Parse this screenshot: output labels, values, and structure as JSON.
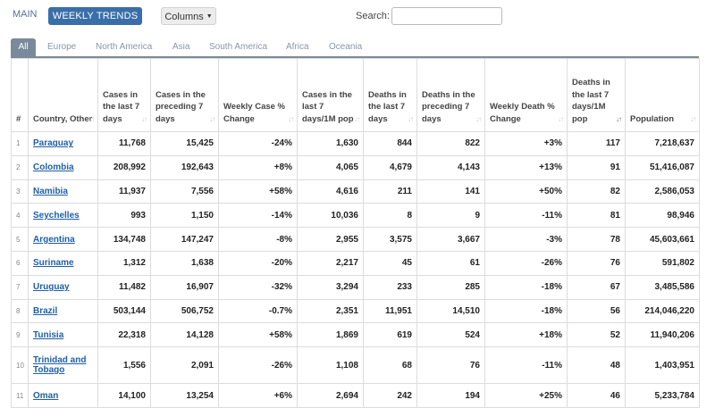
{
  "topbar": {
    "main_label": "MAIN",
    "weekly_label": "WEEKLY TRENDS",
    "columns_label": "Columns",
    "search_label": "Search:",
    "search_value": ""
  },
  "tabs": [
    "All",
    "Europe",
    "North America",
    "Asia",
    "South America",
    "Africa",
    "Oceania"
  ],
  "columns": [
    "#",
    "Country, Other",
    "Cases in the last 7 days",
    "Cases in the preceding 7 days",
    "Weekly Case % Change",
    "Cases in the last 7 days/1M pop",
    "Deaths in the last 7 days",
    "Deaths in the preceding 7 days",
    "Weekly Death % Change",
    "Deaths in the last 7 days/1M pop",
    "Population"
  ],
  "rows": [
    {
      "num": "1",
      "country": "Paraguay",
      "c7": "11,768",
      "cp": "15,425",
      "cchg": "-24%",
      "cpm": "1,630",
      "d7": "844",
      "dp": "822",
      "dchg": "+3%",
      "dpm": "117",
      "pop": "7,218,637"
    },
    {
      "num": "2",
      "country": "Colombia",
      "c7": "208,992",
      "cp": "192,643",
      "cchg": "+8%",
      "cpm": "4,065",
      "d7": "4,679",
      "dp": "4,143",
      "dchg": "+13%",
      "dpm": "91",
      "pop": "51,416,087"
    },
    {
      "num": "3",
      "country": "Namibia",
      "c7": "11,937",
      "cp": "7,556",
      "cchg": "+58%",
      "cpm": "4,616",
      "d7": "211",
      "dp": "141",
      "dchg": "+50%",
      "dpm": "82",
      "pop": "2,586,053"
    },
    {
      "num": "4",
      "country": "Seychelles",
      "c7": "993",
      "cp": "1,150",
      "cchg": "-14%",
      "cpm": "10,036",
      "d7": "8",
      "dp": "9",
      "dchg": "-11%",
      "dpm": "81",
      "pop": "98,946"
    },
    {
      "num": "5",
      "country": "Argentina",
      "c7": "134,748",
      "cp": "147,247",
      "cchg": "-8%",
      "cpm": "2,955",
      "d7": "3,575",
      "dp": "3,667",
      "dchg": "-3%",
      "dpm": "78",
      "pop": "45,603,661"
    },
    {
      "num": "6",
      "country": "Suriname",
      "c7": "1,312",
      "cp": "1,638",
      "cchg": "-20%",
      "cpm": "2,217",
      "d7": "45",
      "dp": "61",
      "dchg": "-26%",
      "dpm": "76",
      "pop": "591,802"
    },
    {
      "num": "7",
      "country": "Uruguay",
      "c7": "11,482",
      "cp": "16,907",
      "cchg": "-32%",
      "cpm": "3,294",
      "d7": "233",
      "dp": "285",
      "dchg": "-18%",
      "dpm": "67",
      "pop": "3,485,586"
    },
    {
      "num": "8",
      "country": "Brazil",
      "c7": "503,144",
      "cp": "506,752",
      "cchg": "-0.7%",
      "cpm": "2,351",
      "d7": "11,951",
      "dp": "14,510",
      "dchg": "-18%",
      "dpm": "56",
      "pop": "214,046,220"
    },
    {
      "num": "9",
      "country": "Tunisia",
      "c7": "22,318",
      "cp": "14,128",
      "cchg": "+58%",
      "cpm": "1,869",
      "d7": "619",
      "dp": "524",
      "dchg": "+18%",
      "dpm": "52",
      "pop": "11,940,206"
    },
    {
      "num": "10",
      "country": "Trinidad and Tobago",
      "c7": "1,556",
      "cp": "2,091",
      "cchg": "-26%",
      "cpm": "1,108",
      "d7": "68",
      "dp": "76",
      "dchg": "-11%",
      "dpm": "48",
      "pop": "1,403,951"
    },
    {
      "num": "11",
      "country": "Oman",
      "c7": "14,100",
      "cp": "13,254",
      "cchg": "+6%",
      "cpm": "2,694",
      "d7": "242",
      "dp": "194",
      "dchg": "+25%",
      "dpm": "46",
      "pop": "5,233,784"
    }
  ]
}
